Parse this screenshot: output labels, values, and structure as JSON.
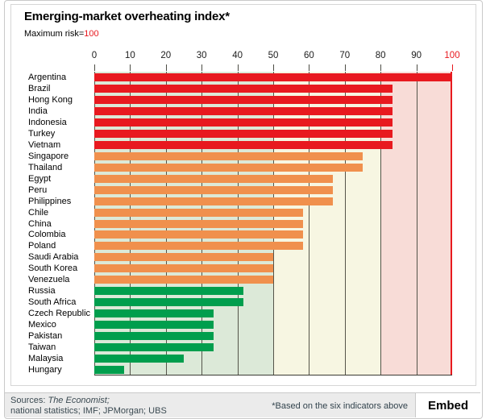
{
  "page": {
    "title": "Emerging-market overheating index*",
    "subtitle_label": "Maximum risk=",
    "subtitle_value": "100"
  },
  "chart_data": {
    "type": "bar",
    "orientation": "horizontal",
    "title": "Emerging-market overheating index*",
    "xlabel": "",
    "ylabel": "",
    "xlim": [
      0,
      100
    ],
    "x_ticks": [
      0,
      10,
      20,
      30,
      40,
      50,
      60,
      70,
      80,
      90,
      100
    ],
    "grid": "vertical",
    "categories": [
      "Argentina",
      "Brazil",
      "Hong Kong",
      "India",
      "Indonesia",
      "Turkey",
      "Vietnam",
      "Singapore",
      "Thailand",
      "Egypt",
      "Peru",
      "Philippines",
      "Chile",
      "China",
      "Colombia",
      "Poland",
      "Saudi Arabia",
      "South Korea",
      "Venezuela",
      "Russia",
      "South Africa",
      "Czech Republic",
      "Mexico",
      "Pakistan",
      "Taiwan",
      "Malaysia",
      "Hungary"
    ],
    "values": [
      100,
      83.3,
      83.3,
      83.3,
      83.3,
      83.3,
      83.3,
      75,
      75,
      66.7,
      66.7,
      66.7,
      58.3,
      58.3,
      58.3,
      58.3,
      50,
      50,
      50,
      41.7,
      41.7,
      33.3,
      33.3,
      33.3,
      33.3,
      25,
      8.3
    ],
    "groups": [
      "high",
      "high",
      "high",
      "high",
      "high",
      "high",
      "high",
      "medium",
      "medium",
      "medium",
      "medium",
      "medium",
      "medium",
      "medium",
      "medium",
      "medium",
      "medium",
      "medium",
      "medium",
      "low",
      "low",
      "low",
      "low",
      "low",
      "low",
      "low",
      "low"
    ],
    "palette": {
      "high": "#e8191f",
      "medium": "#f0904d",
      "low": "#009e4d"
    },
    "zones": [
      {
        "from": 0,
        "to": 50,
        "color": "#dce9d8"
      },
      {
        "from": 50,
        "to": 80,
        "color": "#f7f6e2"
      },
      {
        "from": 80,
        "to": 100,
        "color": "#f8dcd7"
      }
    ],
    "max_line_color": "#e8191f",
    "axis_max_color": "#e8191f"
  },
  "footer": {
    "sources_prefix": "Sources: ",
    "sources_source": "The Economist;",
    "sources_line2": "national statistics; IMF; JPMorgan; UBS",
    "footnote": "*Based on the six indicators above",
    "embed_label": "Embed"
  }
}
